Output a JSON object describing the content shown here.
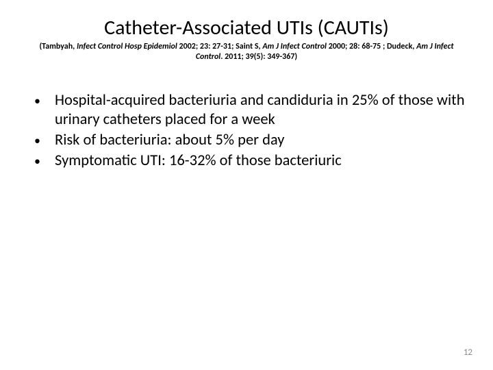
{
  "title": "Catheter-Associated UTIs (CAUTIs)",
  "citation": {
    "pre1": "(Tambyah, ",
    "ital1": "Infect Control Hosp Epidemiol ",
    "mid1": "2002; 23: 27-31; Saint S, ",
    "ital2": "Am J Infect Control ",
    "mid2": "2000; 28: 68-75 ; Dudeck, ",
    "ital3": "Am J Infect Control",
    "post": ". 2011; 39(5): 349-367)"
  },
  "bullets": [
    "Hospital-acquired bacteriuria and candiduria in 25% of those with urinary catheters placed for a week",
    "Risk of bacteriuria: about 5%  per day",
    "Symptomatic UTI: 16-32% of those bacteriuric"
  ],
  "page_number": "12",
  "colors": {
    "text": "#000000",
    "background": "#ffffff",
    "pagenum": "#8a8a8a"
  },
  "typography": {
    "title_fontsize_pt": 30,
    "citation_fontsize_pt": 12,
    "body_fontsize_pt": 22,
    "pagenum_fontsize_pt": 13,
    "font_family": "Calibri"
  }
}
